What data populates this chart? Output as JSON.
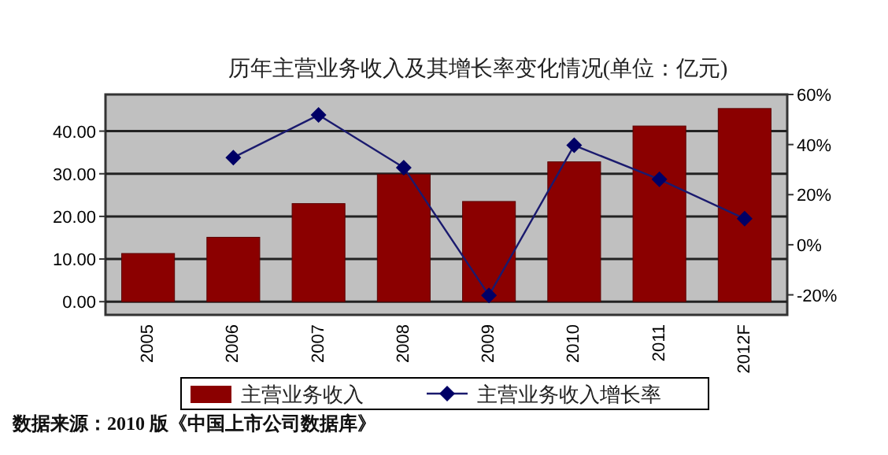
{
  "chart_data": {
    "type": "bar",
    "title": "历年主营业务收入及其增长率变化情况(单位：亿元)",
    "categories": [
      "2005",
      "2006",
      "2007",
      "2008",
      "2009",
      "2010",
      "2011",
      "2012F"
    ],
    "series": [
      {
        "name": "主营业务收入",
        "color": "#8b0000",
        "values": [
          11.3,
          15.1,
          23.0,
          29.9,
          23.5,
          32.8,
          41.2,
          45.3
        ]
      },
      {
        "name": "主营业务收入增长率",
        "color": "#1a1a6e",
        "type": "line",
        "axis": "y2",
        "marker": "diamond",
        "values": [
          null,
          34.8,
          51.8,
          30.8,
          -20.2,
          39.7,
          26.1,
          10.4
        ]
      }
    ],
    "ylim": [
      -3.1,
      48.6
    ],
    "yticks": [
      {
        "value": 0,
        "label": "0.00"
      },
      {
        "value": 10,
        "label": "10.00"
      },
      {
        "value": 20,
        "label": "20.00"
      },
      {
        "value": 30,
        "label": "30.00"
      },
      {
        "value": 40,
        "label": "40.00"
      }
    ],
    "y2lim": [
      -28,
      60
    ],
    "y2ticks": [
      {
        "value": -20,
        "label": "-20%"
      },
      {
        "value": 0,
        "label": "0%"
      },
      {
        "value": 20,
        "label": "20%"
      },
      {
        "value": 40,
        "label": "40%"
      },
      {
        "value": 60,
        "label": "60%"
      }
    ],
    "grid": "y",
    "legend": "bottom",
    "annotations": [
      "数据来源：2010 版《中国上市公司数据库》"
    ]
  }
}
